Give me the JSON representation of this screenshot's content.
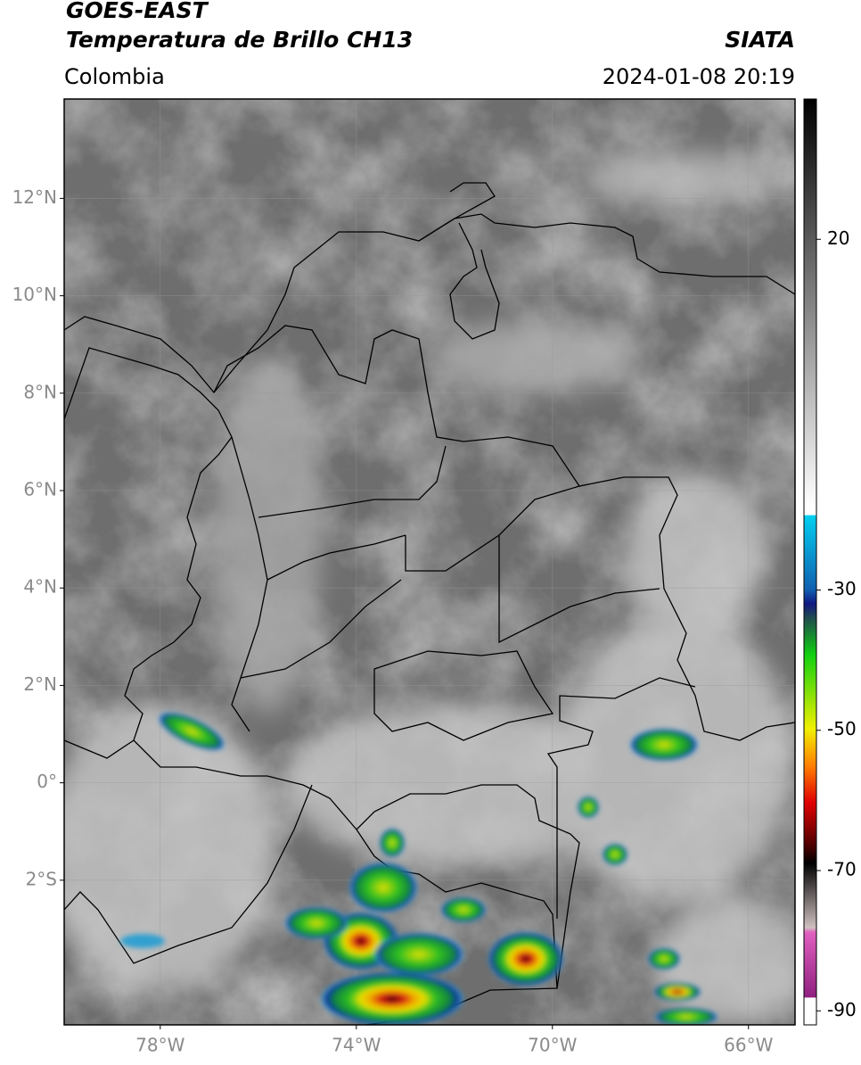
{
  "header": {
    "title": "GOES-EAST",
    "subtitle": "Temperatura de Brillo CH13",
    "region": "Colombia",
    "source": "SIATA",
    "datetime": "2024-01-08 20:19"
  },
  "map": {
    "lat_lim": [
      -4.97,
      14.04
    ],
    "lon_lim": [
      -79.96,
      -65.05
    ],
    "lat_ticks": [
      {
        "value": 12,
        "label": "12°N"
      },
      {
        "value": 10,
        "label": "10°N"
      },
      {
        "value": 8,
        "label": "8°N"
      },
      {
        "value": 6,
        "label": "6°N"
      },
      {
        "value": 4,
        "label": "4°N"
      },
      {
        "value": 2,
        "label": "2°N"
      },
      {
        "value": 0,
        "label": "0°"
      },
      {
        "value": -2,
        "label": "2°S"
      }
    ],
    "lon_ticks": [
      {
        "value": -78,
        "label": "78°W"
      },
      {
        "value": -74,
        "label": "74°W"
      },
      {
        "value": -70,
        "label": "70°W"
      },
      {
        "value": -66,
        "label": "66°W"
      }
    ]
  },
  "colorbar": {
    "ylim": [
      -92,
      40
    ],
    "yticks": [
      20,
      -30,
      -50,
      -70,
      -90
    ]
  }
}
